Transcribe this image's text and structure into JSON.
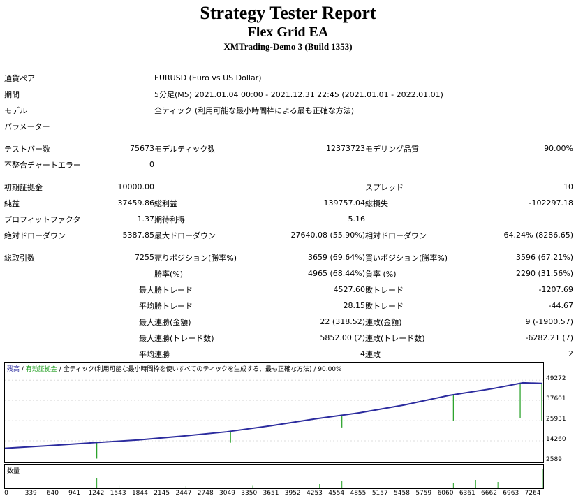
{
  "header": {
    "title": "Strategy Tester Report",
    "ea_name": "Flex Grid EA",
    "server": "XMTrading-Demo 3 (Build 1353)"
  },
  "info": {
    "pair_label": "通貨ペア",
    "pair_value": "EURUSD (Euro vs US Dollar)",
    "period_label": "期間",
    "period_value": "5分足(M5) 2021.01.04 00:00 - 2021.12.31 22:45 (2021.01.01 - 2022.01.01)",
    "model_label": "モデル",
    "model_value": "全ティック (利用可能な最小時間枠による最も正確な方法)",
    "params_label": "パラメーター"
  },
  "stats": {
    "bars_label": "テストバー数",
    "bars_value": "75673",
    "ticks_label": "モデルティック数",
    "ticks_value": "12373723",
    "quality_label": "モデリング品質",
    "quality_value": "90.00%",
    "mismatch_label": "不整合チャートエラー",
    "mismatch_value": "0",
    "deposit_label": "初期証拠金",
    "deposit_value": "10000.00",
    "spread_label": "スプレッド",
    "spread_value": "10",
    "net_label": "純益",
    "net_value": "37459.86",
    "gross_profit_label": "総利益",
    "gross_profit_value": "139757.04",
    "gross_loss_label": "総損失",
    "gross_loss_value": "-102297.18",
    "pf_label": "プロフィットファクタ",
    "pf_value": "1.37",
    "expected_label": "期待利得",
    "expected_value": "5.16",
    "abs_dd_label": "絶対ドローダウン",
    "abs_dd_value": "5387.85",
    "max_dd_label": "最大ドローダウン",
    "max_dd_value": "27640.08 (55.90%)",
    "rel_dd_label": "相対ドローダウン",
    "rel_dd_value": "64.24% (8286.65)",
    "trades_label": "総取引数",
    "trades_value": "7255",
    "short_label": "売りポジション(勝率%)",
    "short_value": "3659 (69.64%)",
    "long_label": "買いポジション(勝率%)",
    "long_value": "3596 (67.21%)",
    "win_rate_label": "勝率(%)",
    "win_rate_value": "4965 (68.44%)",
    "loss_rate_label": "負率 (%)",
    "loss_rate_value": "2290 (31.56%)",
    "max_label": "最大",
    "avg_label": "平均",
    "max_win_label": "勝トレード",
    "max_win_value": "4527.60",
    "max_loss_label": "敗トレード",
    "max_loss_value": "-1207.69",
    "avg_win_label": "勝トレード",
    "avg_win_value": "28.15",
    "avg_loss_label": "敗トレード",
    "avg_loss_value": "-44.67",
    "cons_wins_amt_label": "連勝(金額)",
    "cons_wins_amt_value": "22 (318.52)",
    "cons_loss_amt_label": "連敗(金額)",
    "cons_loss_amt_value": "9 (-1900.57)",
    "cons_wins_tr_label": "連勝(トレード数)",
    "cons_wins_tr_value": "5852.00 (2)",
    "cons_loss_tr_label": "連敗(トレード数)",
    "cons_loss_tr_value": "-6282.21 (7)",
    "avg_cons_win_label": "連勝",
    "avg_cons_win_value": "4",
    "avg_cons_loss_label": "連敗",
    "avg_cons_loss_value": "2"
  },
  "chart_legend": {
    "balance": "残高",
    "sep1": " / ",
    "equity": "有効証拠金",
    "sep2": " / ",
    "rest": "全ティック(利用可能な最小時間枠を使いすべてのティックを生成する、最も正確な方法) / 90.00%"
  },
  "volume_label": "数量",
  "colors": {
    "balance": "#2b2b9e",
    "equity": "#1f9d1f",
    "volume": "#1f9d1f"
  },
  "chart_data": {
    "type": "line",
    "x_ticks": [
      "0",
      "339",
      "640",
      "941",
      "1242",
      "1543",
      "1844",
      "2145",
      "2447",
      "2748",
      "3049",
      "3350",
      "3651",
      "3952",
      "4253",
      "4554",
      "4855",
      "5157",
      "5458",
      "5759",
      "6060",
      "6361",
      "6662",
      "6963",
      "7264"
    ],
    "y_ticks": [
      "49272",
      "37601",
      "25931",
      "14260",
      "2589"
    ],
    "ylim": [
      2589,
      53000
    ],
    "xlim": [
      0,
      7255
    ],
    "series": [
      {
        "name": "残高",
        "x": [
          0,
          600,
          1200,
          1800,
          2400,
          3000,
          3600,
          4200,
          4800,
          5400,
          6000,
          6600,
          7000,
          7255
        ],
        "values": [
          10000,
          11500,
          13200,
          14800,
          17000,
          19500,
          23000,
          27000,
          30500,
          35000,
          40500,
          44500,
          47800,
          47460
        ]
      },
      {
        "name": "有効証拠金",
        "dips": [
          [
            1242,
            4000
          ],
          [
            3049,
            13200
          ],
          [
            4554,
            22000
          ],
          [
            6060,
            26000
          ],
          [
            6963,
            27500
          ],
          [
            7255,
            26000
          ]
        ]
      }
    ],
    "volume_spikes": [
      [
        1242,
        0.5
      ],
      [
        1543,
        0.15
      ],
      [
        2447,
        0.1
      ],
      [
        3350,
        0.15
      ],
      [
        4253,
        0.2
      ],
      [
        4554,
        0.35
      ],
      [
        6060,
        0.25
      ],
      [
        6361,
        0.4
      ],
      [
        6662,
        0.3
      ],
      [
        7264,
        0.9
      ]
    ]
  }
}
